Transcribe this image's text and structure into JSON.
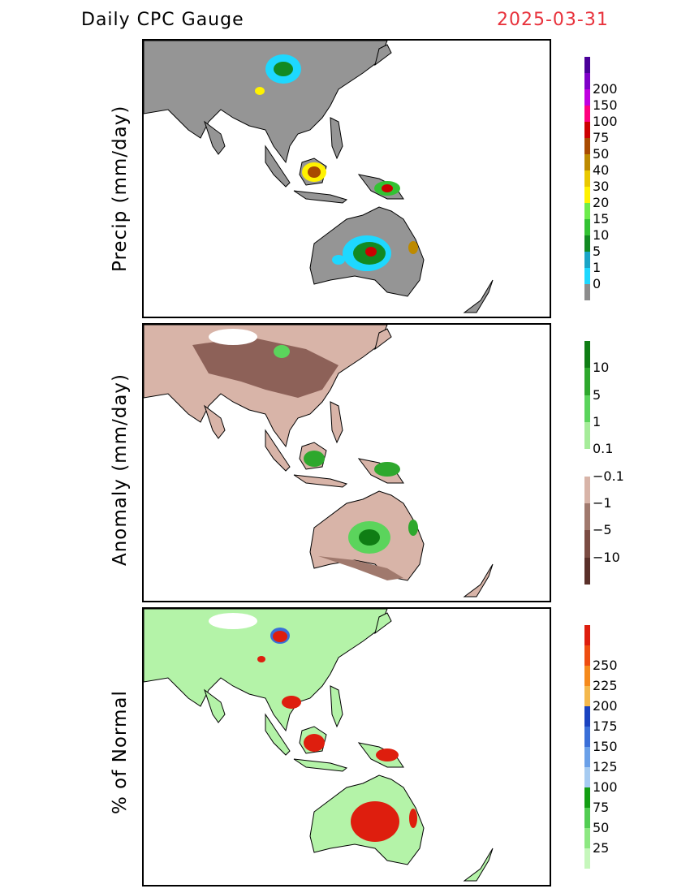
{
  "header": {
    "title": "Daily CPC Gauge",
    "date": "2025-03-31"
  },
  "panels": [
    {
      "ylabel": "Precip (mm/day)",
      "land_color": "#959595",
      "colorbar": {
        "colors": [
          "#8c8c8c",
          "#1ed8ff",
          "#1aa5c7",
          "#128a22",
          "#33c233",
          "#6dec4c",
          "#fff200",
          "#e9c800",
          "#bd8a00",
          "#a84a00",
          "#cc0000",
          "#ff007f",
          "#c000e0",
          "#7f00c8",
          "#4a0099"
        ],
        "labels": [
          "0",
          "1",
          "5",
          "10",
          "15",
          "20",
          "30",
          "40",
          "50",
          "75",
          "100",
          "150",
          "200"
        ]
      }
    },
    {
      "ylabel": "Anomaly (mm/day)",
      "land_color": "#d8b4a8",
      "colorbar": {
        "colors": [
          "#5a302a",
          "#7b4c43",
          "#a0796d",
          "#d8b4a8",
          "#ffffff",
          "#a6ec9a",
          "#5bd45c",
          "#2ea82d",
          "#0f7d14"
        ],
        "labels": [
          "−10",
          "−5",
          "−1",
          "−0.1",
          "0.1",
          "1",
          "5",
          "10"
        ]
      }
    },
    {
      "ylabel": "% of Normal",
      "land_color": "#b4f3a8",
      "colorbar": {
        "colors": [
          "#c6f7bc",
          "#8de882",
          "#52cd52",
          "#129e12",
          "#a6cbf1",
          "#6aa0e8",
          "#3a6fd8",
          "#1a43c0",
          "#f4b84c",
          "#f58a1c",
          "#ee4d10",
          "#de1e0e"
        ],
        "labels": [
          "25",
          "50",
          "75",
          "100",
          "125",
          "150",
          "175",
          "200",
          "225",
          "250"
        ]
      }
    }
  ]
}
